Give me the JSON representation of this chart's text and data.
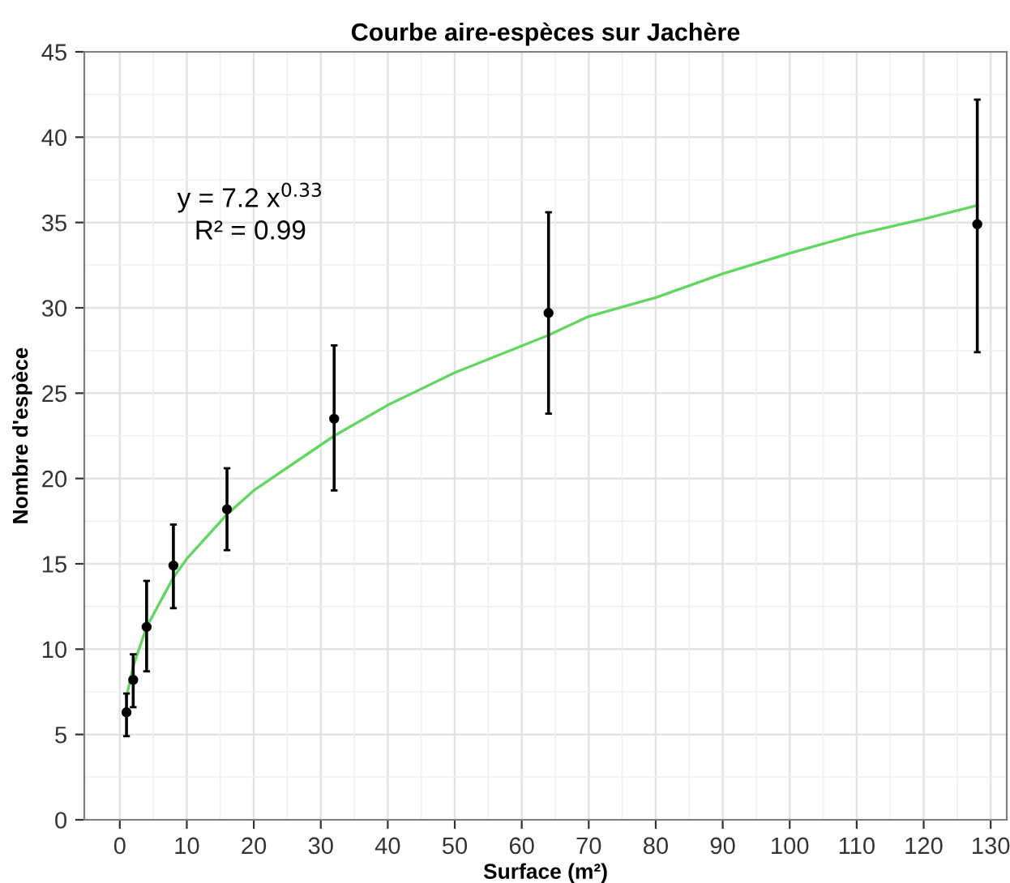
{
  "chart_data": {
    "type": "scatter",
    "title": "Courbe aire-espèces sur Jachère",
    "xlabel": "Surface (m²)",
    "ylabel": "Nombre d'espèce",
    "annotations": [
      "y = 7.2 x$^{0.33}$",
      "R² = 0.99"
    ],
    "xlim": [
      -5.3,
      132.4
    ],
    "ylim": [
      0,
      45
    ],
    "xticks": [
      0,
      10,
      20,
      30,
      40,
      50,
      60,
      70,
      80,
      90,
      100,
      110,
      120,
      130
    ],
    "yticks": [
      0,
      5,
      10,
      15,
      20,
      25,
      30,
      35,
      40,
      45
    ],
    "grid": true,
    "marker": "circle",
    "series": [
      {
        "color": "#000000",
        "x": [
          1,
          2,
          4,
          8,
          16,
          32,
          64,
          128
        ],
        "values": [
          6.3,
          8.2,
          11.3,
          14.9,
          18.2,
          23.5,
          29.7,
          34.9
        ],
        "errors": [
          [
            4.9,
            7.4
          ],
          [
            6.6,
            9.7
          ],
          [
            8.7,
            14.0
          ],
          [
            12.4,
            17.3
          ],
          [
            15.8,
            20.6
          ],
          [
            19.3,
            27.8
          ],
          [
            23.8,
            35.6
          ],
          [
            27.4,
            42.2
          ]
        ]
      },
      {
        "type": "line",
        "color": "#5fd85f",
        "marker": "none",
        "x": [
          1,
          2,
          4,
          8,
          10,
          16,
          20,
          32,
          40,
          50,
          64,
          70,
          80,
          90,
          100,
          110,
          120,
          128
        ],
        "values": [
          7.2,
          9.0,
          11.3,
          14.2,
          15.3,
          17.9,
          19.3,
          22.5,
          24.3,
          26.2,
          28.4,
          29.5,
          30.6,
          32.0,
          33.2,
          34.3,
          35.2,
          36.0
        ]
      }
    ]
  }
}
